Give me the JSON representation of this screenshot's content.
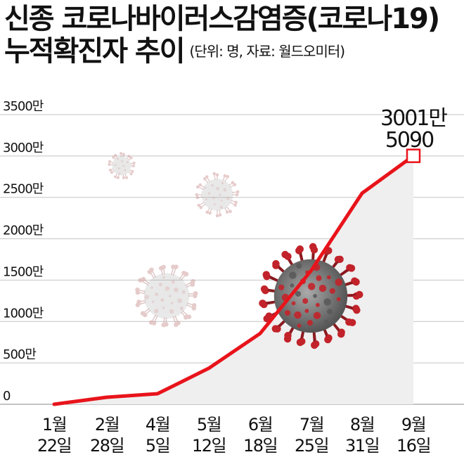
{
  "title": {
    "line1": "신종 코로나바이러스감염증(코로나19)",
    "line2": "누적확진자 추이",
    "subtitle": "(단위: 명, 자료: 월드오미터)"
  },
  "colors": {
    "line": "#e8141b",
    "area": "#efefef",
    "grid": "#c4c4c4",
    "text": "#111111",
    "virus_dark": "#9a9a9a",
    "virus_red": "#c2232a"
  },
  "chart_data": {
    "type": "area",
    "categories": [
      "1월 22일",
      "2월 28일",
      "4월 5일",
      "5월 12일",
      "6월 18일",
      "7월 25일",
      "8월 31일",
      "9월 16일"
    ],
    "x_labels": [
      {
        "month": "1월",
        "day": "22일"
      },
      {
        "month": "2월",
        "day": "28일"
      },
      {
        "month": "4월",
        "day": "5일"
      },
      {
        "month": "5월",
        "day": "12일"
      },
      {
        "month": "6월",
        "day": "18일"
      },
      {
        "month": "7월",
        "day": "25일"
      },
      {
        "month": "8월",
        "day": "31일"
      },
      {
        "month": "9월",
        "day": "16일"
      }
    ],
    "values": [
      555,
      850000,
      1270000,
      4350000,
      8550000,
      16200000,
      25500000,
      30015090
    ],
    "ylim": [
      0,
      35000000
    ],
    "y_ticks": [
      0,
      5000000,
      10000000,
      15000000,
      20000000,
      25000000,
      30000000,
      35000000
    ],
    "y_tick_labels": [
      "0",
      "500만",
      "1000만",
      "1500만",
      "2000만",
      "2500만",
      "3000만",
      "3500만"
    ],
    "grid": true,
    "annotation": {
      "line1": "3001만",
      "line2": "5090"
    }
  }
}
